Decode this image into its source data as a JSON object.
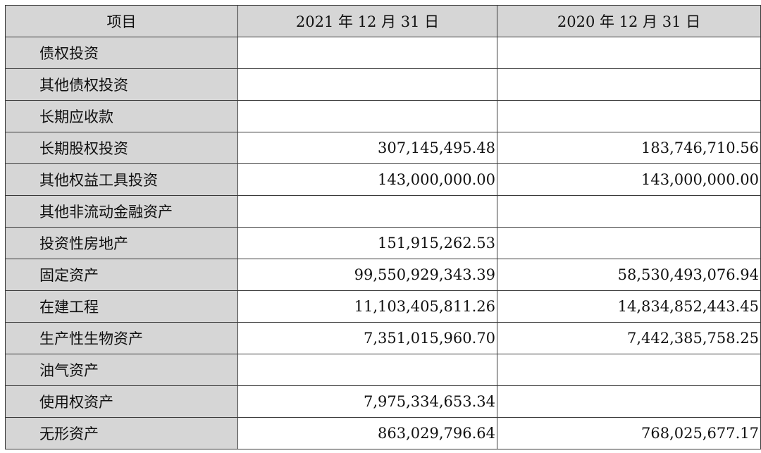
{
  "table": {
    "headers": [
      "项目",
      "2021 年 12 月 31 日",
      "2020 年 12 月 31 日"
    ],
    "rows": [
      {
        "item": "债权投资",
        "y2021": "",
        "y2020": ""
      },
      {
        "item": "其他债权投资",
        "y2021": "",
        "y2020": ""
      },
      {
        "item": "长期应收款",
        "y2021": "",
        "y2020": ""
      },
      {
        "item": "长期股权投资",
        "y2021": "307,145,495.48",
        "y2020": "183,746,710.56"
      },
      {
        "item": "其他权益工具投资",
        "y2021": "143,000,000.00",
        "y2020": "143,000,000.00"
      },
      {
        "item": "其他非流动金融资产",
        "y2021": "",
        "y2020": ""
      },
      {
        "item": "投资性房地产",
        "y2021": "151,915,262.53",
        "y2020": ""
      },
      {
        "item": "固定资产",
        "y2021": "99,550,929,343.39",
        "y2020": "58,530,493,076.94"
      },
      {
        "item": "在建工程",
        "y2021": "11,103,405,811.26",
        "y2020": "14,834,852,443.45"
      },
      {
        "item": "生产性生物资产",
        "y2021": "7,351,015,960.70",
        "y2020": "7,442,385,758.25"
      },
      {
        "item": "油气资产",
        "y2021": "",
        "y2020": ""
      },
      {
        "item": "使用权资产",
        "y2021": "7,975,334,653.34",
        "y2020": ""
      },
      {
        "item": "无形资产",
        "y2021": "863,029,796.64",
        "y2020": "768,025,677.17"
      }
    ]
  }
}
